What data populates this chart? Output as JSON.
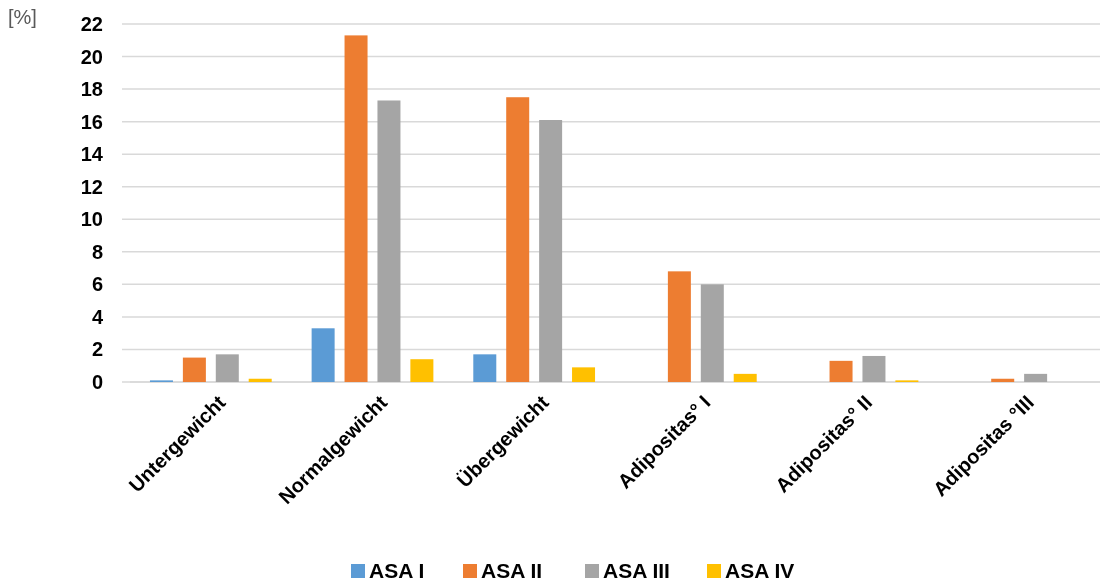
{
  "chart_data": {
    "type": "bar",
    "ylabel": "[%]",
    "categories": [
      "Untergewicht",
      "Normalgewicht",
      "Übergewicht",
      "Adipositas° I",
      "Adipositas° II",
      "Adipositas °III"
    ],
    "series": [
      {
        "name": "ASA I",
        "color": "#5b9bd5",
        "values": [
          0.1,
          3.3,
          1.7,
          0,
          0,
          0
        ]
      },
      {
        "name": "ASA II",
        "color": "#ed7d31",
        "values": [
          1.5,
          21.3,
          17.5,
          6.8,
          1.3,
          0.2
        ]
      },
      {
        "name": "ASA III",
        "color": "#a5a5a5",
        "values": [
          1.7,
          17.3,
          16.1,
          6.0,
          1.6,
          0.5
        ]
      },
      {
        "name": "ASA IV",
        "color": "#ffc000",
        "values": [
          0.2,
          1.4,
          0.9,
          0.5,
          0.1,
          0
        ]
      }
    ],
    "ylim": [
      0,
      22
    ],
    "yticks": [
      0,
      2,
      4,
      6,
      8,
      10,
      12,
      14,
      16,
      18,
      20,
      22
    ],
    "grid": "y",
    "legend": "bottom"
  }
}
